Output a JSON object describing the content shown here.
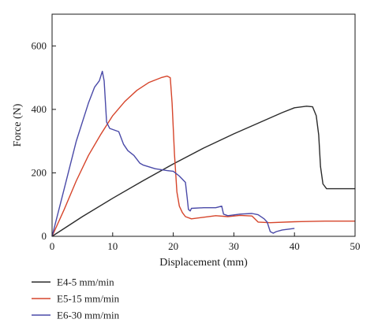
{
  "chart_data": {
    "type": "line",
    "xlabel": "Displacement (mm)",
    "ylabel": "Force (N)",
    "xlim": [
      0,
      50
    ],
    "ylim": [
      0,
      700
    ],
    "xticks": [
      0,
      10,
      20,
      30,
      40,
      50
    ],
    "yticks": [
      0,
      200,
      400,
      600
    ],
    "grid": false,
    "legend_placement": "bottom-left, below the plot",
    "series": [
      {
        "name": "E4-5 mm/min",
        "color": "#2b2b2b",
        "x": [
          0,
          5,
          10,
          15,
          20,
          25,
          30,
          35,
          38,
          40,
          42,
          43,
          43.6,
          44,
          44.3,
          44.7,
          45.3,
          47,
          50
        ],
        "y": [
          0,
          62,
          120,
          175,
          228,
          278,
          323,
          365,
          390,
          405,
          410,
          408,
          380,
          320,
          220,
          165,
          150,
          150,
          150
        ]
      },
      {
        "name": "E5-15 mm/min",
        "color": "#d6452b",
        "x": [
          0,
          2,
          4,
          6,
          8,
          10,
          12,
          14,
          16,
          18,
          19,
          19.5,
          19.8,
          20.2,
          20.6,
          21,
          21.5,
          22,
          23,
          25,
          27,
          29,
          31,
          33,
          34,
          36,
          40,
          45,
          50
        ],
        "y": [
          0,
          85,
          175,
          255,
          320,
          380,
          425,
          460,
          485,
          500,
          505,
          500,
          420,
          260,
          140,
          95,
          75,
          62,
          55,
          60,
          65,
          62,
          66,
          64,
          45,
          43,
          46,
          48,
          48
        ]
      },
      {
        "name": "E6-30 mm/min",
        "color": "#4a4aa8",
        "x": [
          0,
          2,
          4,
          6,
          7,
          7.8,
          8.3,
          8.6,
          9,
          9.5,
          11,
          11.8,
          12.5,
          13.5,
          14.5,
          15,
          17,
          19,
          20,
          21,
          22,
          22.3,
          22.5,
          22.8,
          23,
          25,
          27,
          28,
          28.3,
          29,
          31,
          33,
          34,
          35,
          35.5,
          36,
          36.5,
          37,
          38,
          40
        ],
        "y": [
          0,
          150,
          300,
          420,
          470,
          490,
          520,
          490,
          360,
          340,
          330,
          290,
          270,
          255,
          230,
          225,
          213,
          207,
          205,
          190,
          170,
          120,
          85,
          80,
          88,
          90,
          90,
          95,
          70,
          65,
          70,
          72,
          68,
          55,
          45,
          15,
          10,
          15,
          20,
          25
        ]
      }
    ]
  }
}
